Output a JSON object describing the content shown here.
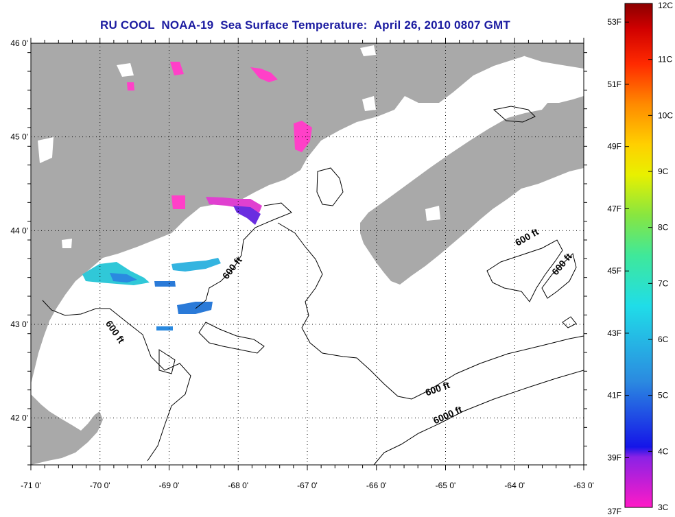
{
  "title": "RU COOL  NOAA-19  Sea Surface Temperature:  April 26, 2010 0807 GMT",
  "colors": {
    "land": "#a9a9a9",
    "ocean": "#ffffff",
    "contour": "#000000",
    "title": "#1a1aa0",
    "grid": "#000000"
  },
  "map": {
    "lon_range": [
      -71,
      -63
    ],
    "lat_range": [
      41.5,
      46
    ],
    "lon_ticks": [
      {
        "value": -71,
        "label": "-71 0'"
      },
      {
        "value": -70,
        "label": "-70 0'"
      },
      {
        "value": -69,
        "label": "-69 0'"
      },
      {
        "value": -68,
        "label": "-68 0'"
      },
      {
        "value": -67,
        "label": "-67 0'"
      },
      {
        "value": -66,
        "label": "-66 0'"
      },
      {
        "value": -65,
        "label": "-65 0'"
      },
      {
        "value": -64,
        "label": "-64 0'"
      },
      {
        "value": -63,
        "label": "-63 0'"
      }
    ],
    "lat_ticks": [
      {
        "value": 46,
        "label": "46 0'"
      },
      {
        "value": 45,
        "label": "45 0'"
      },
      {
        "value": 44,
        "label": "44 0'"
      },
      {
        "value": 43,
        "label": "43 0'"
      },
      {
        "value": 42,
        "label": "42 0'"
      }
    ],
    "grid": "dotted",
    "contour_labels": [
      {
        "text": "600 ft",
        "lon": -68.05,
        "lat": 43.58,
        "angle": -52
      },
      {
        "text": "600 ft",
        "lon": -69.82,
        "lat": 42.9,
        "angle": 55
      },
      {
        "text": "600 ft",
        "lon": -63.8,
        "lat": 43.9,
        "angle": -30
      },
      {
        "text": "600 ft",
        "lon": -63.28,
        "lat": 43.62,
        "angle": -50
      },
      {
        "text": "600 ft",
        "lon": -65.1,
        "lat": 42.28,
        "angle": -20
      },
      {
        "text": "6000 ft",
        "lon": -64.95,
        "lat": 42.0,
        "angle": -24
      }
    ]
  },
  "colorbar": {
    "stops": [
      "#ff1ac6",
      "#9b1de0",
      "#1010e6",
      "#2a7ad8",
      "#1fd7e6",
      "#41e886",
      "#c6e600",
      "#f7f700",
      "#ffa500",
      "#ff3b00",
      "#e60000",
      "#8b0000"
    ],
    "celsius": [
      {
        "value": 12,
        "label": "12C"
      },
      {
        "value": 11,
        "label": "11C"
      },
      {
        "value": 10,
        "label": "10C"
      },
      {
        "value": 9,
        "label": "9C"
      },
      {
        "value": 8,
        "label": "8C"
      },
      {
        "value": 7,
        "label": "7C"
      },
      {
        "value": 6,
        "label": "6C"
      },
      {
        "value": 5,
        "label": "5C"
      },
      {
        "value": 4,
        "label": "4C"
      },
      {
        "value": 3,
        "label": "3C"
      }
    ],
    "fahrenheit": [
      {
        "value": 53,
        "label": "53F"
      },
      {
        "value": 51,
        "label": "51F"
      },
      {
        "value": 49,
        "label": "49F"
      },
      {
        "value": 47,
        "label": "47F"
      },
      {
        "value": 45,
        "label": "45F"
      },
      {
        "value": 43,
        "label": "43F"
      },
      {
        "value": 41,
        "label": "41F"
      },
      {
        "value": 39,
        "label": "39F"
      },
      {
        "value": 37,
        "label": "37F"
      }
    ]
  }
}
